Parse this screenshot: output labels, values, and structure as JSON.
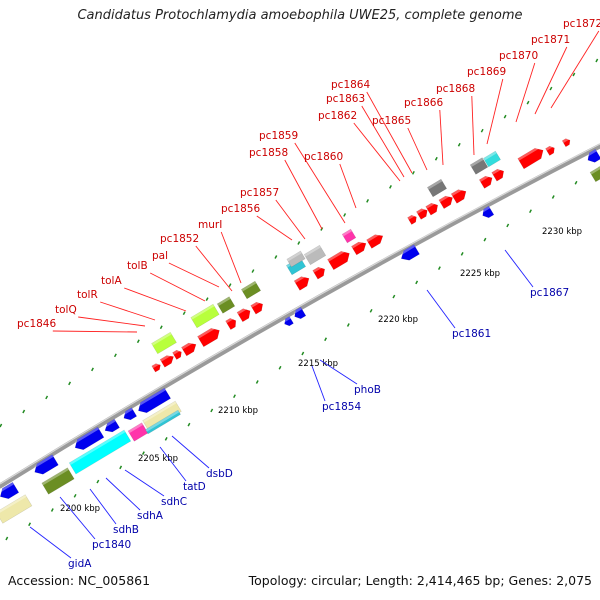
{
  "title": "Candidatus Protochlamydia amoebophila UWE25, complete genome",
  "accession": "Accession: NC_005861",
  "topology": "Topology: circular; Length: 2,414,465 bp; Genes: 2,075",
  "colors": {
    "forward_gene": "#ff0000",
    "reverse_gene": "#0000ee",
    "forward_label": "#cc0000",
    "reverse_label": "#0000aa",
    "backbone": "#888888",
    "tick_green": "#228b22"
  },
  "ruler": [
    {
      "label": "2200 kbp"
    },
    {
      "label": "2205 kbp"
    },
    {
      "label": "2210 kbp"
    },
    {
      "label": "2215 kbp"
    },
    {
      "label": "2220 kbp"
    },
    {
      "label": "2225 kbp"
    },
    {
      "label": "2230 kbp"
    }
  ],
  "forward_labels": [
    "pc1846",
    "tolQ",
    "tolR",
    "tolA",
    "tolB",
    "pal",
    "murI",
    "pc1852",
    "pc1856",
    "pc1857",
    "pc1858",
    "pc1859",
    "pc1860",
    "pc1862",
    "pc1863",
    "pc1864",
    "pc1865",
    "pc1866",
    "pc1868",
    "pc1869",
    "pc1870",
    "pc1871",
    "pc1872"
  ],
  "reverse_labels": [
    "gidA",
    "pc1840",
    "sdhB",
    "sdhA",
    "sdhC",
    "tatD",
    "dsbD",
    "pc1854",
    "phoB",
    "pc1861",
    "pc1867"
  ]
}
